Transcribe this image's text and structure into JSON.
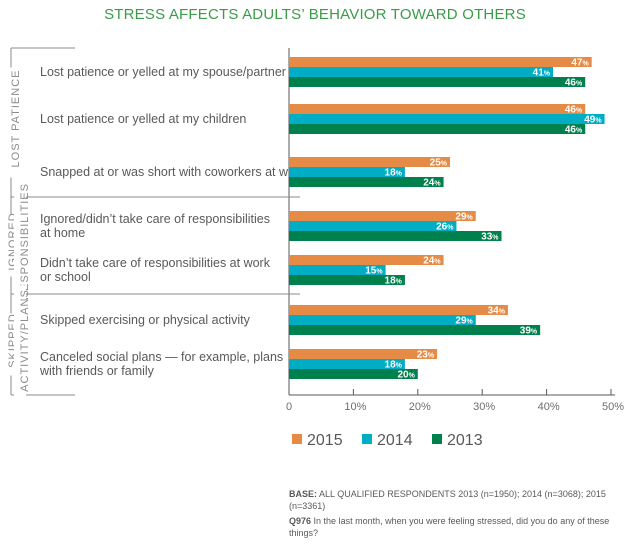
{
  "chart_data": {
    "type": "bar",
    "orientation": "horizontal",
    "title": "STRESS AFFECTS ADULTS’ BEHAVIOR TOWARD OTHERS",
    "categories": [
      [
        "Lost patience or yelled at my spouse/partner"
      ],
      [
        "Lost patience or yelled at my children"
      ],
      [
        "Snapped at or was short with coworkers at work"
      ],
      [
        "Ignored/didn’t take care of responsibilities",
        "at home"
      ],
      [
        "Didn’t take care of responsibilities at work",
        "or school"
      ],
      [
        "Skipped exercising or physical activity"
      ],
      [
        "Canceled social plans — for example, plans",
        "with friends or family"
      ]
    ],
    "groups": [
      {
        "label": [
          "LOST PATIENCE"
        ],
        "count": 3
      },
      {
        "label": [
          "IGNORED",
          "RESPONSIBILITIES"
        ],
        "count": 2
      },
      {
        "label": [
          "SKIPPED",
          "ACTIVITY/PLANS"
        ],
        "count": 2
      }
    ],
    "series": [
      {
        "name": "2015",
        "color": "#e58b45",
        "values": [
          47,
          46,
          25,
          29,
          24,
          34,
          23
        ]
      },
      {
        "name": "2014",
        "color": "#00adc4",
        "values": [
          41,
          49,
          18,
          26,
          15,
          29,
          18
        ]
      },
      {
        "name": "2013",
        "color": "#00804c",
        "values": [
          46,
          46,
          24,
          33,
          18,
          39,
          20
        ]
      }
    ],
    "xlim": [
      0,
      50
    ],
    "xticks": [
      "0",
      "10%",
      "20%",
      "30%",
      "40%",
      "50%"
    ],
    "value_suffix": "%",
    "legend_position": "bottom",
    "grid": false
  },
  "notes": {
    "base_label": "BASE:",
    "base_text": "ALL QUALIFIED RESPONDENTS 2013 (n=1950); 2014 (n=3068); 2015 (n=3361)",
    "q_label": "Q976",
    "q_text": "In the last month, when you were feeling stressed, did you do any of these things?"
  }
}
